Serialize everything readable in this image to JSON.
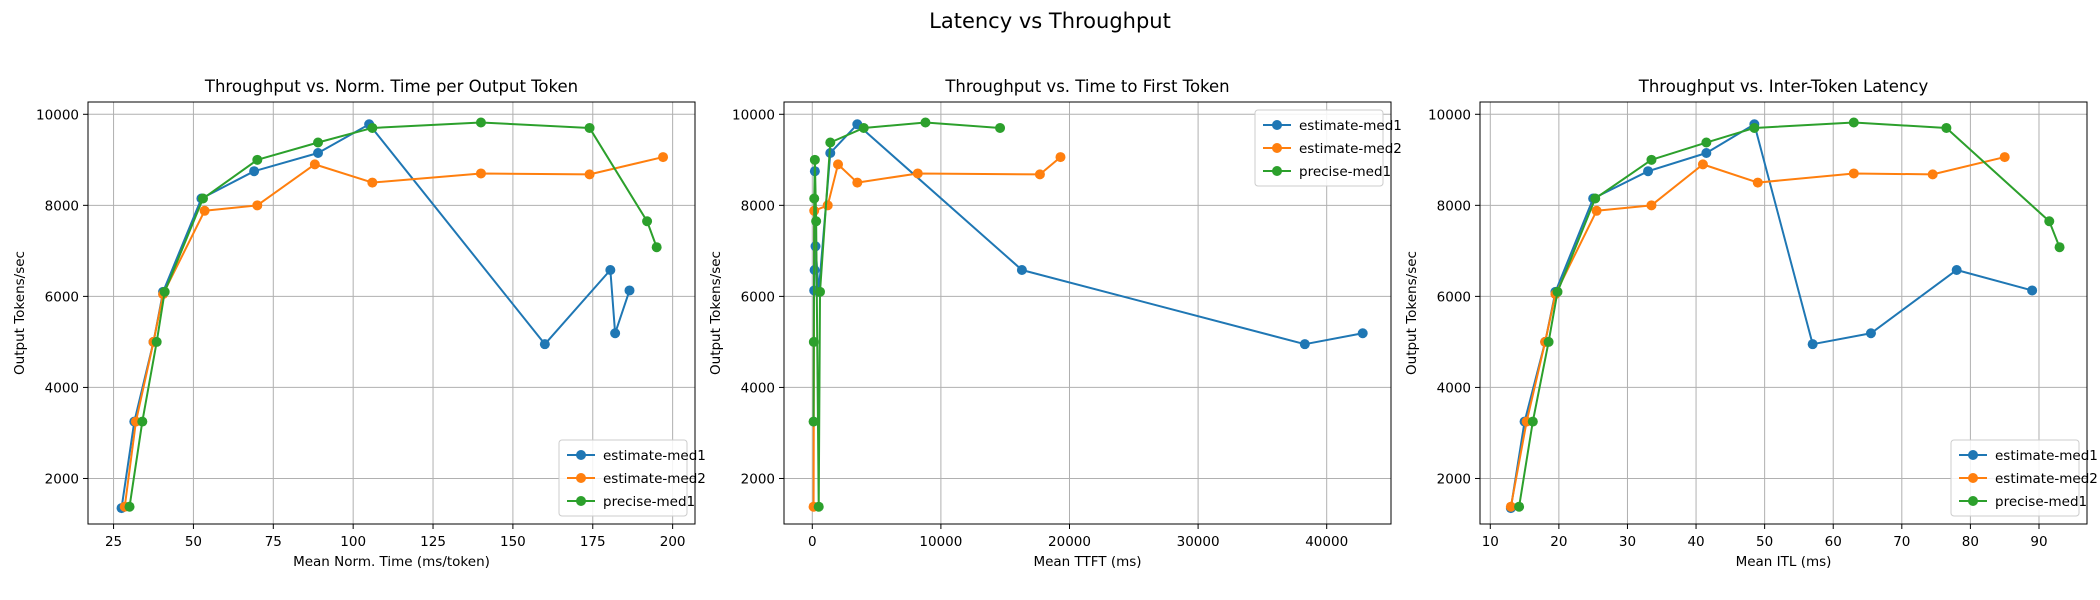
{
  "figure": {
    "suptitle": "Latency vs Throughput"
  },
  "chart_data": [
    {
      "type": "line",
      "title": "Throughput vs. Norm. Time per Output Token",
      "xlabel": "Mean Norm. Time (ms/token)",
      "ylabel": "Output Tokens/sec",
      "xlim": [
        17,
        207
      ],
      "ylim": [
        1000,
        10270
      ],
      "xticks": [
        25,
        50,
        75,
        100,
        125,
        150,
        175,
        200
      ],
      "xtick_labels": [
        "25",
        "50",
        "75",
        "100",
        "125",
        "150",
        "175",
        "200"
      ],
      "yticks": [
        2000,
        4000,
        6000,
        8000,
        10000
      ],
      "ytick_labels": [
        "2000",
        "4000",
        "6000",
        "8000",
        "10000"
      ],
      "grid": true,
      "legend_position": "lower right",
      "series": [
        {
          "name": "estimate-med1",
          "color": "#1f77b4",
          "x": [
            27.5,
            31.5,
            37.5,
            40.5,
            52.5,
            69,
            89,
            105,
            160,
            180.5,
            182,
            186.5
          ],
          "y": [
            1350,
            3250,
            5000,
            6100,
            8150,
            8750,
            9150,
            9780,
            4950,
            6580,
            5190,
            6130
          ]
        },
        {
          "name": "estimate-med2",
          "color": "#ff7f0e",
          "x": [
            28.5,
            32,
            37.5,
            40.5,
            53.5,
            70,
            88,
            106,
            140,
            174,
            197
          ],
          "y": [
            1380,
            3250,
            5000,
            6050,
            7880,
            8000,
            8900,
            8500,
            8700,
            8680,
            9060
          ]
        },
        {
          "name": "precise-med1",
          "color": "#2ca02c",
          "x": [
            30,
            34,
            38.5,
            41,
            53,
            70,
            89,
            106,
            140,
            174,
            192,
            195
          ],
          "y": [
            1380,
            3250,
            5000,
            6100,
            8150,
            9000,
            9380,
            9700,
            9820,
            9700,
            7650,
            7080
          ]
        }
      ]
    },
    {
      "type": "line",
      "title": "Throughput vs. Time to First Token",
      "xlabel": "Mean TTFT (ms)",
      "ylabel": "Output Tokens/sec",
      "xlim": [
        -2200,
        45000
      ],
      "ylim": [
        1000,
        10270
      ],
      "xticks": [
        0,
        10000,
        20000,
        30000,
        40000
      ],
      "xtick_labels": [
        "0",
        "10000",
        "20000",
        "30000",
        "40000"
      ],
      "yticks": [
        2000,
        4000,
        6000,
        8000,
        10000
      ],
      "ytick_labels": [
        "2000",
        "4000",
        "6000",
        "8000",
        "10000"
      ],
      "grid": true,
      "legend_position": "upper right",
      "series": [
        {
          "name": "estimate-med1",
          "color": "#1f77b4",
          "x": [
            150,
            180,
            200,
            250,
            500,
            1400,
            3500,
            16300,
            38300,
            42800
          ],
          "y": [
            6130,
            6580,
            8750,
            7100,
            6100,
            9150,
            9780,
            6580,
            4950,
            5190
          ]
        },
        {
          "name": "estimate-med2",
          "color": "#ff7f0e",
          "x": [
            100,
            150,
            1200,
            2000,
            3500,
            8200,
            17700,
            19300
          ],
          "y": [
            1380,
            7880,
            8000,
            8900,
            8500,
            8700,
            8680,
            9060
          ]
        },
        {
          "name": "precise-med1",
          "color": "#2ca02c",
          "x": [
            100,
            120,
            150,
            200,
            300,
            500,
            600,
            1400,
            4000,
            8800,
            14600
          ],
          "y": [
            3250,
            5000,
            8150,
            9000,
            7650,
            1380,
            6100,
            9380,
            9700,
            9820,
            9700
          ]
        }
      ]
    },
    {
      "type": "line",
      "title": "Throughput vs. Inter-Token Latency",
      "xlabel": "Mean ITL (ms)",
      "ylabel": "Output Tokens/sec",
      "xlim": [
        8.5,
        97
      ],
      "ylim": [
        1000,
        10270
      ],
      "xticks": [
        10,
        20,
        30,
        40,
        50,
        60,
        70,
        80,
        90
      ],
      "xtick_labels": [
        "10",
        "20",
        "30",
        "40",
        "50",
        "60",
        "70",
        "80",
        "90"
      ],
      "yticks": [
        2000,
        4000,
        6000,
        8000,
        10000
      ],
      "ytick_labels": [
        "2000",
        "4000",
        "6000",
        "8000",
        "10000"
      ],
      "grid": true,
      "legend_position": "lower right",
      "series": [
        {
          "name": "estimate-med1",
          "color": "#1f77b4",
          "x": [
            13,
            15,
            18,
            19.5,
            25,
            33,
            41.5,
            48.5,
            57,
            65.5,
            78,
            89
          ],
          "y": [
            1350,
            3250,
            5000,
            6100,
            8150,
            8750,
            9150,
            9780,
            4950,
            5190,
            6580,
            6130
          ]
        },
        {
          "name": "estimate-med2",
          "color": "#ff7f0e",
          "x": [
            13,
            15.3,
            18,
            19.5,
            25.5,
            33.5,
            41,
            49,
            63,
            74.5,
            85
          ],
          "y": [
            1380,
            3250,
            5000,
            6050,
            7880,
            8000,
            8900,
            8500,
            8700,
            8680,
            9060
          ]
        },
        {
          "name": "precise-med1",
          "color": "#2ca02c",
          "x": [
            14.2,
            16.2,
            18.5,
            19.8,
            25.3,
            33.5,
            41.5,
            48.5,
            63,
            76.5,
            91.5,
            93
          ],
          "y": [
            1380,
            3250,
            5000,
            6100,
            8150,
            9000,
            9380,
            9700,
            9820,
            9700,
            7650,
            7080
          ]
        }
      ]
    }
  ]
}
